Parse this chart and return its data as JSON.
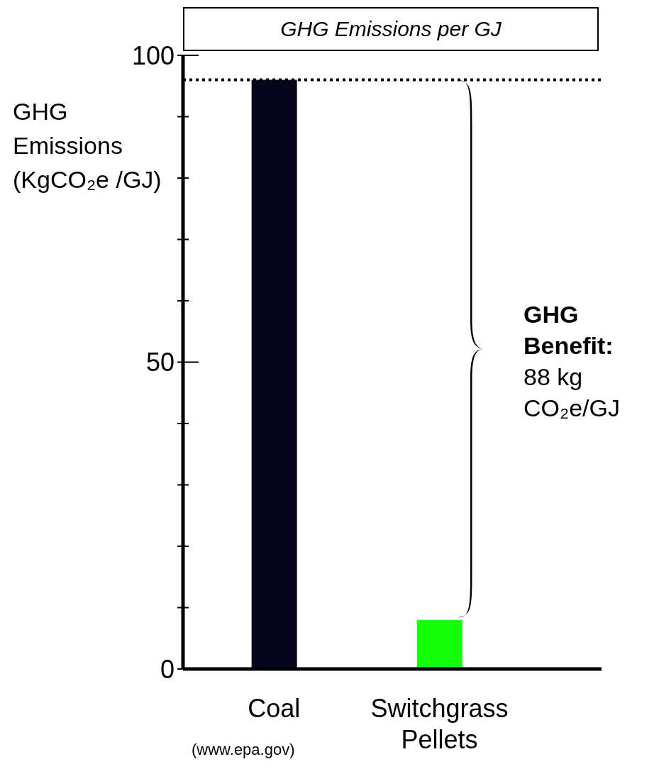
{
  "chart_data": {
    "type": "bar",
    "title": "GHG Emissions per GJ",
    "ylabel": "GHG Emissions (KgCO₂e /GJ)",
    "categories": [
      "Coal",
      "Switchgrass Pellets"
    ],
    "values": [
      96,
      8
    ],
    "colors": [
      "#05051e",
      "#14ff0a"
    ],
    "ylim": [
      0,
      100
    ],
    "yticks": [
      0,
      {
        "value": 10,
        "label": null
      },
      {
        "value": 20,
        "label": null
      },
      {
        "value": 30,
        "label": null
      },
      {
        "value": 40,
        "label": null
      },
      50,
      {
        "value": 60,
        "label": null
      },
      {
        "value": 70,
        "label": null
      },
      {
        "value": 80,
        "label": null
      },
      {
        "value": 90,
        "label": null
      },
      100
    ],
    "ref_lines": [
      {
        "axis": "y",
        "value": 96,
        "line_style": "dotted",
        "color": "#000000"
      }
    ],
    "annotations": [
      "GHG Benefit:",
      "88 kg CO₂e/GJ",
      "(www.epa.gov)"
    ],
    "grid": false,
    "legend": false
  }
}
